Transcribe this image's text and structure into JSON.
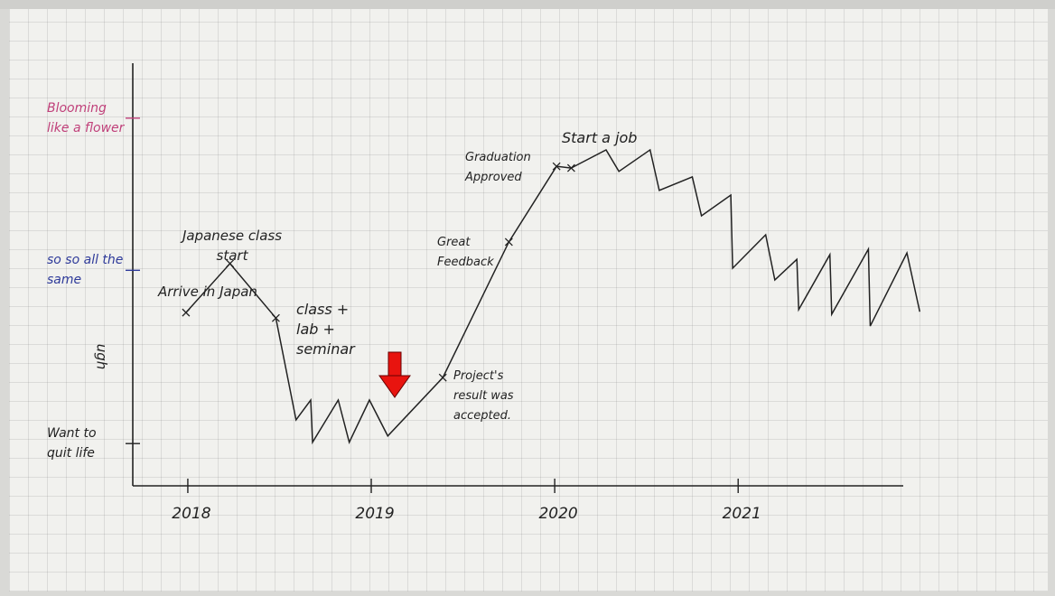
{
  "chart_data": {
    "type": "line",
    "color": "#222222",
    "x": [
      2017.99,
      2018.23,
      2018.48,
      2018.59,
      2018.67,
      2018.68,
      2018.82,
      2018.88,
      2018.99,
      2019.09,
      2019.39,
      2019.75,
      2020.01,
      2020.09,
      2020.28,
      2020.35,
      2020.52,
      2020.57,
      2020.75,
      2020.8,
      2020.96,
      2020.97,
      2021.15,
      2021.2,
      2021.32,
      2021.33,
      2021.5,
      2021.51,
      2021.71,
      2021.72,
      2021.92,
      2021.99
    ],
    "values": [
      4.1,
      5.26,
      3.97,
      1.56,
      2.03,
      1.03,
      2.03,
      1.03,
      2.03,
      1.18,
      2.56,
      5.77,
      7.56,
      7.52,
      7.95,
      7.44,
      7.95,
      6.99,
      7.31,
      6.39,
      6.88,
      5.15,
      5.94,
      4.87,
      5.36,
      4.17,
      5.47,
      4.06,
      5.6,
      3.78,
      5.51,
      4.12
    ],
    "xlim": [
      2017.7,
      2021.9
    ],
    "xticks": [
      2018,
      2019,
      2020,
      2021
    ],
    "ylim": [
      0,
      10
    ],
    "yticks": [
      {
        "value": 1,
        "label": "Want to quit life"
      },
      {
        "value": 5.1,
        "label": "so so all the same"
      },
      {
        "value": 8.7,
        "label": "Blooming like a flower"
      }
    ],
    "y_annotation": "ugh",
    "annotations": [
      "Arrive in Japan",
      "Japanese class start",
      "class + lab + seminar",
      "Project's result was accepted.",
      "Great Feedback",
      "Graduation Approved",
      "Start a job"
    ],
    "grid": true
  }
}
